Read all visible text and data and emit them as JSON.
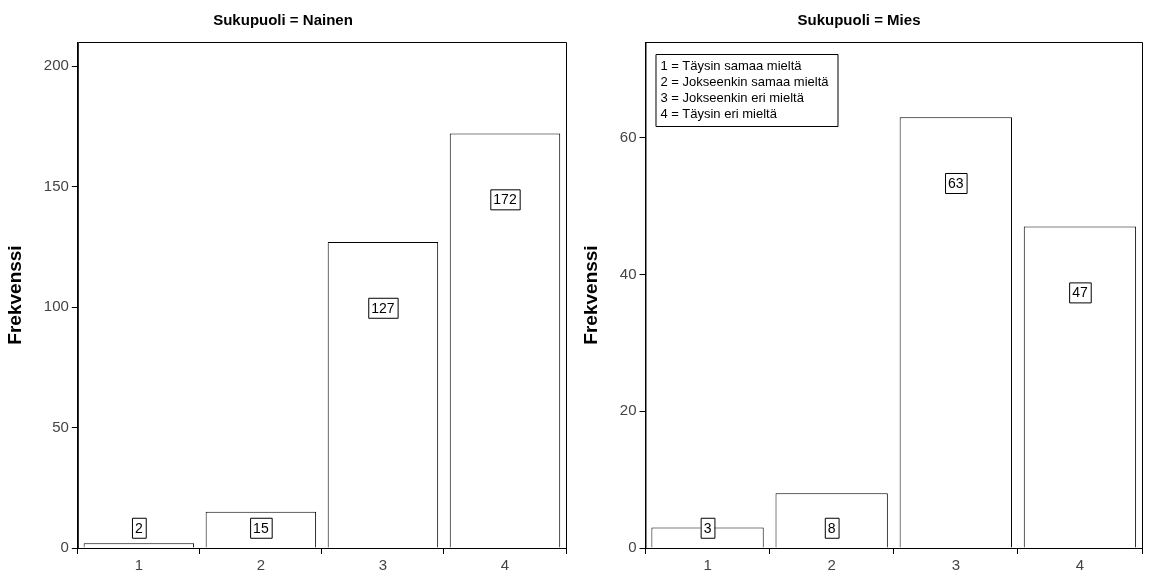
{
  "chart_data": [
    {
      "type": "bar",
      "title": "Sukupuoli = Nainen",
      "ylabel": "Frekvenssi",
      "categories": [
        "1",
        "2",
        "3",
        "4"
      ],
      "values": [
        2,
        15,
        127,
        172
      ],
      "color": "#ffffff",
      "ylim": [
        0,
        210
      ],
      "yticks": [
        0,
        50,
        100,
        150,
        200
      ],
      "data_labels": true,
      "grid": false,
      "legend": false
    },
    {
      "type": "bar",
      "title": "Sukupuoli = Mies",
      "ylabel": "Frekvenssi",
      "categories": [
        "1",
        "2",
        "3",
        "4"
      ],
      "values": [
        3,
        8,
        63,
        47
      ],
      "color": "#ffffff",
      "ylim": [
        0,
        74
      ],
      "yticks": [
        0,
        20,
        40,
        60
      ],
      "data_labels": true,
      "grid": false,
      "legend": false,
      "annotations": [
        "1 = Täysin samaa mieltä",
        "2 = Jokseenkin samaa mieltä",
        "3 = Jokseenkin eri mieltä",
        "4 = Täysin eri mieltä"
      ]
    }
  ]
}
